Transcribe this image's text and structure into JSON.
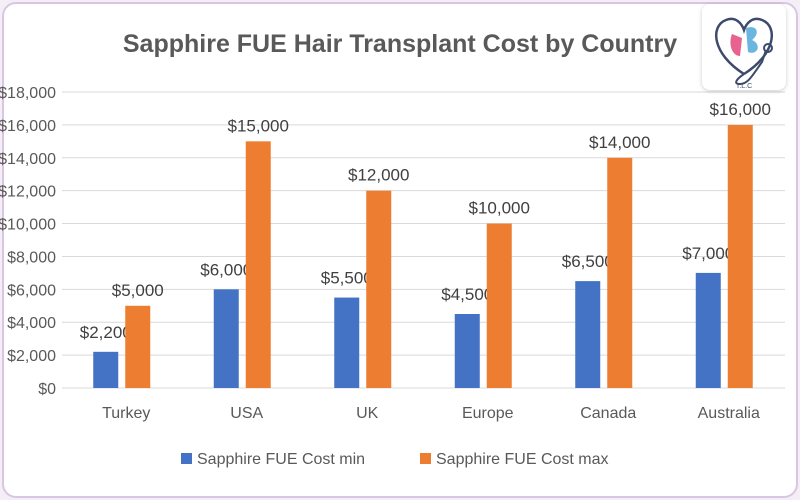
{
  "chart_data": {
    "type": "bar",
    "title": "Sapphire FUE Hair Transplant Cost by Country",
    "categories": [
      "Turkey",
      "USA",
      "UK",
      "Europe",
      "Canada",
      "Australia"
    ],
    "series": [
      {
        "name": "Sapphire FUE Cost  min",
        "values": [
          2200,
          6000,
          5500,
          4500,
          6500,
          7000
        ],
        "color": "#4472c4",
        "labels": [
          "$2,200",
          "$6,000",
          "$5,500",
          "$4,500",
          "$6,500",
          "$7,000"
        ]
      },
      {
        "name": "Sapphire FUE Cost max",
        "values": [
          5000,
          15000,
          12000,
          10000,
          14000,
          16000
        ],
        "color": "#ed7d31",
        "labels": [
          "$5,000",
          "$15,000",
          "$12,000",
          "$10,000",
          "$14,000",
          "$16,000"
        ]
      }
    ],
    "yticks": [
      "$0",
      "$2,000",
      "$4,000",
      "$6,000",
      "$8,000",
      "$10,000",
      "$12,000",
      "$14,000",
      "$16,000",
      "$18,000"
    ],
    "ylim": [
      0,
      18000
    ],
    "grid": true,
    "legend": "bottom",
    "xlabel": "",
    "ylabel": ""
  },
  "logo": {
    "text": "T.L.C"
  }
}
